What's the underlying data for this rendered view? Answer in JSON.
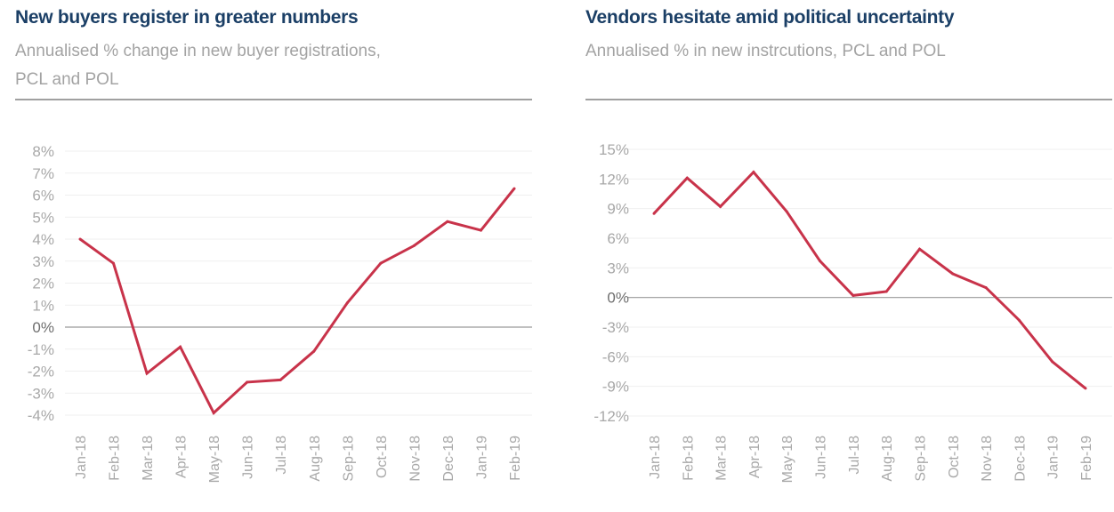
{
  "chart_data": [
    {
      "type": "line",
      "title": "New buyers register in greater numbers",
      "subtitle_lines": [
        "Annualised % change in new buyer registrations,",
        "PCL and POL"
      ],
      "xlabel": "",
      "ylabel": "",
      "categories": [
        "Jan-18",
        "Feb-18",
        "Mar-18",
        "Apr-18",
        "May-18",
        "Jun-18",
        "Jul-18",
        "Aug-18",
        "Sep-18",
        "Oct-18",
        "Nov-18",
        "Dec-18",
        "Jan-19",
        "Feb-19"
      ],
      "series": [
        {
          "name": "New buyer registrations",
          "values": [
            4.0,
            2.9,
            -2.1,
            -0.9,
            -3.9,
            -2.5,
            -2.4,
            -1.1,
            1.1,
            2.9,
            3.7,
            4.8,
            4.4,
            6.3
          ]
        }
      ],
      "ylim": [
        -4,
        8
      ],
      "yticks": [
        8,
        7,
        6,
        5,
        4,
        3,
        2,
        1,
        0,
        -1,
        -2,
        -3,
        -4
      ],
      "ytick_labels": [
        "8%",
        "7%",
        "6%",
        "5%",
        "4%",
        "3%",
        "2%",
        "1%",
        "0%",
        "-1%",
        "-2%",
        "-3%",
        "-4%"
      ],
      "grid": true,
      "line_color": "#c8334a"
    },
    {
      "type": "line",
      "title": "Vendors hesitate amid political uncertainty",
      "subtitle_lines": [
        "Annualised % in new instrcutions, PCL and POL"
      ],
      "xlabel": "",
      "ylabel": "",
      "categories": [
        "Jan-18",
        "Feb-18",
        "Mar-18",
        "Apr-18",
        "May-18",
        "Jun-18",
        "Jul-18",
        "Aug-18",
        "Sep-18",
        "Oct-18",
        "Nov-18",
        "Dec-18",
        "Jan-19",
        "Feb-19"
      ],
      "series": [
        {
          "name": "New instructions",
          "values": [
            8.5,
            12.1,
            9.2,
            12.7,
            8.7,
            3.7,
            0.2,
            0.6,
            4.9,
            2.4,
            1.0,
            -2.3,
            -6.5,
            -9.2
          ]
        }
      ],
      "ylim": [
        -12,
        15
      ],
      "yticks": [
        15,
        12,
        9,
        6,
        3,
        0,
        -3,
        -6,
        -9,
        -12
      ],
      "ytick_labels": [
        "15%",
        "12%",
        "9%",
        "6%",
        "3%",
        "0%",
        "-3%",
        "-6%",
        "-9%",
        "-12%"
      ],
      "grid": true,
      "line_color": "#c8334a"
    }
  ]
}
